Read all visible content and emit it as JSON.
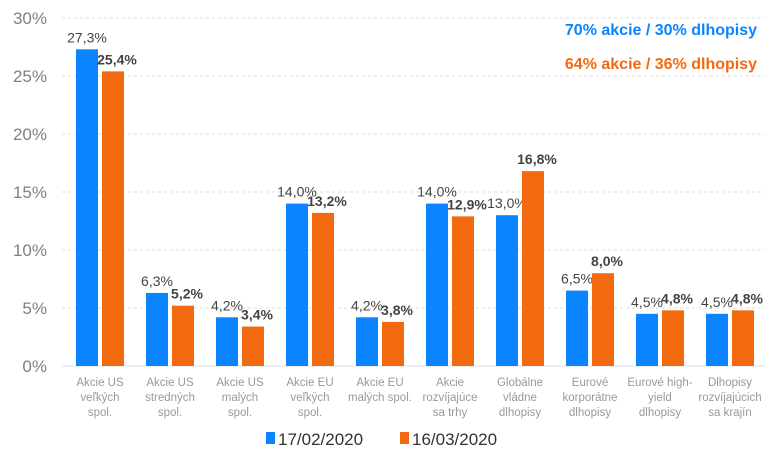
{
  "chart_data": {
    "type": "bar",
    "categories": [
      [
        "Akcie US",
        "veľkých",
        "spol."
      ],
      [
        "Akcie US",
        "stredných",
        "spol."
      ],
      [
        "Akcie US",
        "malých",
        "spol."
      ],
      [
        "Akcie EU",
        "veľkých",
        "spol."
      ],
      [
        "Akcie EU",
        "malých spol."
      ],
      [
        "Akcie",
        "rozvíjajúce",
        "sa trhy"
      ],
      [
        "Globálne",
        "vládne",
        "dlhopisy"
      ],
      [
        "Eurové",
        "korporátne",
        "dlhopisy"
      ],
      [
        "Eurové high-",
        "yield",
        "dlhopisy"
      ],
      [
        "Dlhopisy",
        "rozvíjajúcich",
        "sa krajín"
      ]
    ],
    "series": [
      {
        "name": "17/02/2020",
        "color": "#0A84FF",
        "values": [
          27.3,
          6.3,
          4.2,
          14.0,
          4.2,
          14.0,
          13.0,
          6.5,
          4.5,
          4.5
        ],
        "labels": [
          "27,3%",
          "6,3%",
          "4,2%",
          "14,0%",
          "4,2%",
          "14,0%",
          "13,0%",
          "6,5%",
          "4,5%",
          "4,5%"
        ]
      },
      {
        "name": "16/03/2020",
        "color": "#F26A10",
        "values": [
          25.4,
          5.2,
          3.4,
          13.2,
          3.8,
          12.9,
          16.8,
          8.0,
          4.8,
          4.8
        ],
        "labels": [
          "25,4%",
          "5,2%",
          "3,4%",
          "13,2%",
          "3,8%",
          "12,9%",
          "16,8%",
          "8,0%",
          "4,8%",
          "4,8%"
        ]
      }
    ],
    "yticks": [
      "0%",
      "5%",
      "10%",
      "15%",
      "20%",
      "25%",
      "30%"
    ],
    "ylim": [
      0,
      30
    ],
    "grid": true,
    "legend": "bottom",
    "annotations": [
      {
        "text": "70% akcie / 30% dlhopisy",
        "color": "#0A84FF"
      },
      {
        "text": "64% akcie / 36% dlhopisy",
        "color": "#F26A10"
      }
    ]
  }
}
